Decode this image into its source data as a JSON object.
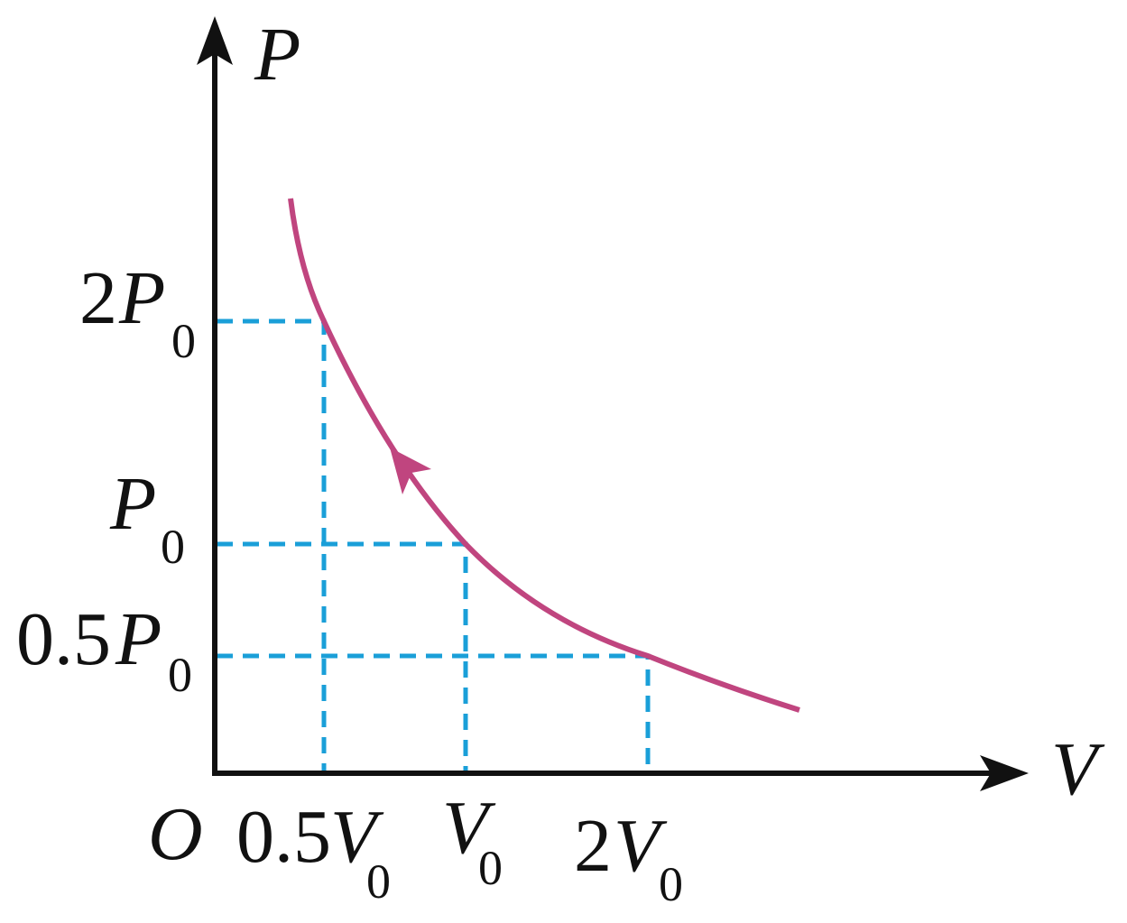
{
  "axes": {
    "y_label": "P",
    "x_label": "V",
    "origin": "O"
  },
  "y_ticks": [
    {
      "coef": "2",
      "var": "P",
      "sub": "0"
    },
    {
      "var": "P",
      "sub": "0"
    },
    {
      "coef": "0.5",
      "var": "P",
      "sub": "0"
    }
  ],
  "x_ticks": [
    {
      "coef": "0.5",
      "var": "V",
      "sub": "0"
    },
    {
      "var": "V",
      "sub": "0"
    },
    {
      "coef": "2",
      "var": "V",
      "sub": "0"
    }
  ]
}
